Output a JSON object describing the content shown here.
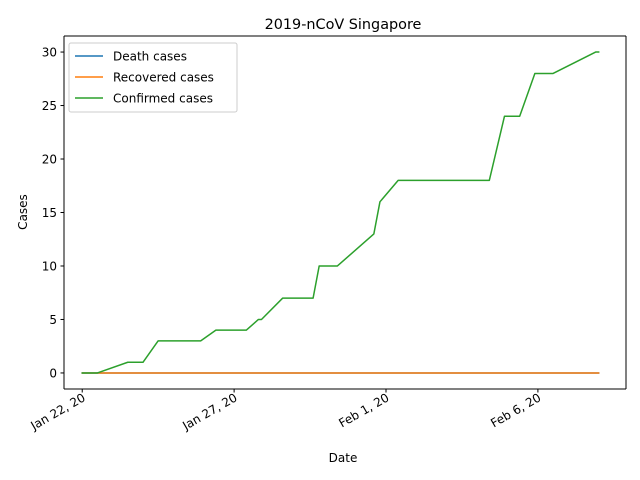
{
  "chart_data": {
    "type": "line",
    "title": "2019-nCoV Singapore",
    "xlabel": "Date",
    "ylabel": "Cases",
    "x_ticks": [
      {
        "day": 0,
        "label": "Jan 22, 20"
      },
      {
        "day": 5,
        "label": "Jan 27, 20"
      },
      {
        "day": 10,
        "label": "Feb 1, 20"
      },
      {
        "day": 15,
        "label": "Feb 6, 20"
      }
    ],
    "y_ticks": [
      0,
      5,
      10,
      15,
      20,
      25,
      30
    ],
    "xlim": [
      -0.6,
      17.9
    ],
    "ylim": [
      -1.5,
      31.5
    ],
    "grid": false,
    "legend_position": "upper-left",
    "series": [
      {
        "name": "Death cases",
        "color": "#1f77b4",
        "points": [
          [
            0,
            0
          ],
          [
            17,
            0
          ]
        ]
      },
      {
        "name": "Recovered cases",
        "color": "#ff7f0e",
        "points": [
          [
            0,
            0
          ],
          [
            17,
            0
          ]
        ]
      },
      {
        "name": "Confirmed cases",
        "color": "#2ca02c",
        "points": [
          [
            0,
            0
          ],
          [
            0.5,
            0
          ],
          [
            1.5,
            1
          ],
          [
            2,
            1
          ],
          [
            2.5,
            3
          ],
          [
            3.9,
            3
          ],
          [
            4.4,
            4
          ],
          [
            5.4,
            4
          ],
          [
            5.8,
            5
          ],
          [
            5.9,
            5
          ],
          [
            6.6,
            7
          ],
          [
            7.6,
            7
          ],
          [
            7.8,
            10
          ],
          [
            8.4,
            10
          ],
          [
            9.6,
            13
          ],
          [
            9.8,
            16
          ],
          [
            10.4,
            18
          ],
          [
            13.4,
            18
          ],
          [
            13.9,
            24
          ],
          [
            14.4,
            24
          ],
          [
            14.9,
            28
          ],
          [
            15.5,
            28
          ],
          [
            16.9,
            30
          ],
          [
            17,
            30
          ]
        ]
      }
    ]
  }
}
